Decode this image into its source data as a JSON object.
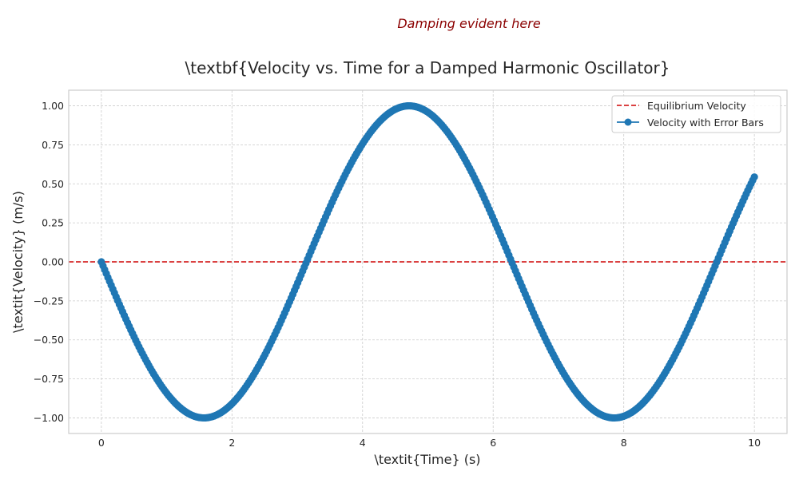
{
  "chart_data": {
    "type": "line",
    "title": "\\textbf{Velocity vs. Time for a Damped Harmonic Oscillator}",
    "xlabel": "\\textit{Time} (s)",
    "ylabel": "\\textit{Velocity} (m/s)",
    "xlim": [
      -0.5,
      10.5
    ],
    "ylim": [
      -1.1,
      1.1
    ],
    "xticks": [
      0,
      2,
      4,
      6,
      8,
      10
    ],
    "xtick_labels": [
      "0",
      "2",
      "4",
      "6",
      "8",
      "10"
    ],
    "yticks": [
      -1.0,
      -0.75,
      -0.5,
      -0.25,
      0.0,
      0.25,
      0.5,
      0.75,
      1.0
    ],
    "ytick_labels": [
      "−1.00",
      "−0.75",
      "−0.50",
      "−0.25",
      "0.00",
      "0.25",
      "0.50",
      "0.75",
      "1.00"
    ],
    "grid": true,
    "legend_position": "top-right",
    "annotation": "Damping evident here",
    "series": [
      {
        "name": "Equilibrium Velocity",
        "kind": "hline",
        "y": 0.0,
        "color": "#d62728",
        "style": "dashed"
      },
      {
        "name": "Velocity with Error Bars",
        "kind": "line-markers",
        "color": "#1f77b4",
        "x_start": 0.0,
        "x_end": 10.0,
        "x": [
          0.0,
          0.5,
          1.0,
          1.5,
          1.5708,
          2.0,
          2.5,
          3.0,
          3.1416,
          3.5,
          4.0,
          4.5,
          4.7124,
          5.0,
          5.5,
          6.0,
          6.2832,
          6.5,
          7.0,
          7.5,
          7.854,
          8.0,
          8.5,
          9.0,
          9.4248,
          9.5,
          10.0
        ],
        "y": [
          0.0,
          -0.479,
          -0.841,
          -0.997,
          -1.0,
          -0.909,
          -0.598,
          -0.141,
          0.0,
          0.351,
          0.757,
          0.978,
          1.0,
          0.959,
          0.706,
          0.279,
          0.0,
          -0.215,
          -0.657,
          -0.938,
          -1.0,
          -0.989,
          -0.798,
          -0.412,
          0.0,
          0.075,
          0.544
        ]
      }
    ]
  }
}
